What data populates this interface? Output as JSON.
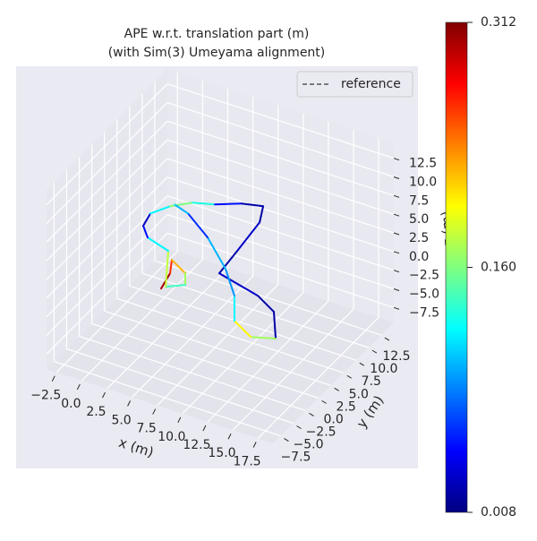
{
  "chart_data": {
    "type": "line3d",
    "title": "APE w.r.t. translation part (m)",
    "subtitle": "(with Sim(3) Umeyama alignment)",
    "xlabel": "x (m)",
    "ylabel": "y (m)",
    "zlabel": "z (m)",
    "xlim": [
      -3.5,
      19
    ],
    "ylim": [
      -9,
      15
    ],
    "zlim": [
      -9.5,
      14.5
    ],
    "xticks": [
      {
        "value": -2.5,
        "label": "−2.5"
      },
      {
        "value": 0,
        "label": "0.0"
      },
      {
        "value": 2.5,
        "label": "2.5"
      },
      {
        "value": 5,
        "label": "5.0"
      },
      {
        "value": 7.5,
        "label": "7.5"
      },
      {
        "value": 10,
        "label": "10.0"
      },
      {
        "value": 12.5,
        "label": "12.5"
      },
      {
        "value": 15,
        "label": "15.0"
      },
      {
        "value": 17.5,
        "label": "17.5"
      }
    ],
    "yticks": [
      {
        "value": -7.5,
        "label": "−7.5"
      },
      {
        "value": -5,
        "label": "−5.0"
      },
      {
        "value": -2.5,
        "label": "−2.5"
      },
      {
        "value": 0,
        "label": "0.0"
      },
      {
        "value": 2.5,
        "label": "2.5"
      },
      {
        "value": 5,
        "label": "5.0"
      },
      {
        "value": 7.5,
        "label": "7.5"
      },
      {
        "value": 10,
        "label": "10.0"
      },
      {
        "value": 12.5,
        "label": "12.5"
      }
    ],
    "zticks": [
      {
        "value": -7.5,
        "label": "−7.5"
      },
      {
        "value": -5,
        "label": "−5.0"
      },
      {
        "value": -2.5,
        "label": "−2.5"
      },
      {
        "value": 0,
        "label": "0.0"
      },
      {
        "value": 2.5,
        "label": "2.5"
      },
      {
        "value": 5,
        "label": "5.0"
      },
      {
        "value": 7.5,
        "label": "7.5"
      },
      {
        "value": 10,
        "label": "10.0"
      },
      {
        "value": 12.5,
        "label": "12.5"
      }
    ],
    "grid": true,
    "legend": "upper right",
    "series": [
      {
        "name": "reference",
        "color": "#555555",
        "x": [
          4.36,
          3.89,
          3.02,
          5.02,
          5.9,
          4.56,
          2.08,
          -0.47,
          -1.67,
          0.73,
          1.66,
          3.07,
          4.88,
          6.82,
          8.63,
          9.57,
          7.24,
          7.57,
          12.12,
          14.53,
          16.68,
          14.67,
          12.26,
          10.38,
          7.7,
          4.02,
          3.54,
          1.86
        ],
        "y": [
          -1.95,
          0.77,
          2.86,
          1.52,
          -0.22,
          -1.46,
          4.03,
          5.02,
          6.55,
          3.17,
          5.21,
          6.85,
          7.68,
          9.13,
          9.78,
          7.2,
          7.41,
          3.18,
          1.73,
          0.11,
          -3.82,
          -4.78,
          -3.17,
          0.58,
          4.16,
          7.97,
          5.02,
          5.7
        ],
        "z": [
          0,
          0,
          0,
          0,
          0,
          0,
          0,
          0,
          0,
          5,
          5,
          5,
          5,
          5,
          5,
          5,
          0,
          0,
          0,
          0,
          0,
          0,
          0,
          0,
          0,
          0,
          5,
          5
        ]
      },
      {
        "x": [
          4.36,
          3.89,
          3.02,
          5.02,
          5.9,
          4.56,
          2.08,
          -0.47,
          -1.67,
          0.73,
          1.66,
          3.07,
          4.88,
          6.82,
          8.63,
          9.57,
          7.24,
          7.57,
          12.12,
          14.53,
          16.68,
          14.67,
          12.26,
          10.38,
          7.7,
          4.02,
          3.54,
          1.86
        ],
        "y": [
          -1.95,
          0.77,
          2.86,
          1.52,
          -0.22,
          -1.46,
          4.03,
          5.02,
          6.55,
          3.17,
          5.21,
          6.85,
          7.68,
          9.13,
          9.78,
          7.2,
          7.41,
          3.18,
          1.73,
          0.11,
          -3.82,
          -4.78,
          -3.17,
          0.58,
          4.16,
          7.97,
          5.02,
          5.7
        ],
        "z": [
          0,
          0,
          0,
          0,
          0,
          0,
          0,
          0,
          0,
          5,
          5,
          5,
          5,
          5,
          5,
          5,
          0,
          0,
          0,
          0,
          0,
          0,
          0,
          0,
          0,
          0,
          5,
          5
        ],
        "values": [
          0.3,
          0.26,
          0.22,
          0.17,
          0.14,
          0.18,
          0.12,
          0.05,
          0.03,
          0.12,
          0.16,
          0.13,
          0.05,
          0.02,
          0.02,
          0.03,
          0.02,
          0.03,
          0.02,
          0.02,
          0.17,
          0.2,
          0.12,
          0.09,
          0.1,
          0.06,
          0.1,
          0.14
        ]
      }
    ],
    "colorbar": {
      "cmap": "jet",
      "lim": [
        0.008,
        0.312
      ],
      "ticks": [
        0.008,
        {
          "value": 0.16,
          "label": "0.160"
        },
        0.312
      ]
    }
  }
}
